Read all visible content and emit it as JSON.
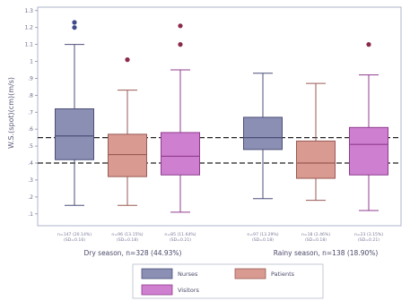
{
  "chart_data": {
    "type": "boxplot",
    "ylabel": "W.S.(spot)(cm)(m/s)",
    "yticks": [
      ".1",
      ".2",
      ".3",
      ".4",
      ".5",
      ".6",
      ".7",
      ".8",
      ".9",
      "1",
      "1.1",
      "1.2",
      "1.3"
    ],
    "ylim": [
      0.03,
      1.32
    ],
    "reference_lines": [
      0.4,
      0.55
    ],
    "legend": {
      "placement": "bottom",
      "entries": [
        {
          "name": "Nurses",
          "color": "#8c8fb4"
        },
        {
          "name": "Patients",
          "color": "#d99a92"
        },
        {
          "name": "Visitors",
          "color": "#cf7fcf"
        }
      ]
    },
    "groups": [
      {
        "label": "Dry season, n=328 (44.93%)",
        "boxes": [
          {
            "series": "Nurses",
            "whisker_low": 0.15,
            "q1": 0.42,
            "median": 0.56,
            "q3": 0.72,
            "whisker_high": 1.1,
            "outliers": [
              1.2,
              1.23
            ],
            "n_label": "n=147 (20.14%)",
            "sd_label": "(SD=0.16)"
          },
          {
            "series": "Patients",
            "whisker_low": 0.15,
            "q1": 0.32,
            "median": 0.45,
            "q3": 0.57,
            "whisker_high": 0.83,
            "outliers": [
              1.01
            ],
            "n_label": "n=96 (13.15%)",
            "sd_label": "(SD=0.18)"
          },
          {
            "series": "Visitors",
            "whisker_low": 0.11,
            "q1": 0.33,
            "median": 0.44,
            "q3": 0.58,
            "whisker_high": 0.95,
            "outliers": [
              1.1,
              1.21
            ],
            "n_label": "n=85 (11.64%)",
            "sd_label": "(SD=0.21)"
          }
        ]
      },
      {
        "label": "Rainy season, n=138 (18.90%)",
        "boxes": [
          {
            "series": "Nurses",
            "whisker_low": 0.19,
            "q1": 0.48,
            "median": 0.55,
            "q3": 0.67,
            "whisker_high": 0.93,
            "outliers": [],
            "n_label": "n=97 (13.29%)",
            "sd_label": "(SD=0.18)"
          },
          {
            "series": "Patients",
            "whisker_low": 0.18,
            "q1": 0.31,
            "median": 0.4,
            "q3": 0.53,
            "whisker_high": 0.87,
            "outliers": [],
            "n_label": "n=18 (2.46%)",
            "sd_label": "(SD=0.18)"
          },
          {
            "series": "Visitors",
            "whisker_low": 0.12,
            "q1": 0.33,
            "median": 0.51,
            "q3": 0.61,
            "whisker_high": 0.92,
            "outliers": [
              1.1
            ],
            "n_label": "n=23 (3.15%)",
            "sd_label": "(SD=0.21)"
          }
        ]
      }
    ]
  }
}
